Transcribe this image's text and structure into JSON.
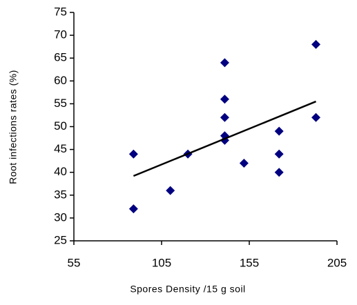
{
  "chart_data": {
    "type": "scatter",
    "x_label": "Spores Density /15 g soil",
    "y_label": "Root infections rates (%)",
    "x": [
      89,
      89,
      110,
      120,
      141,
      141,
      141,
      141,
      141,
      152,
      172,
      172,
      172,
      193,
      193
    ],
    "series": [
      {
        "color": "#000080",
        "values": [
          44,
          32,
          36,
          44,
          64,
          56,
          52,
          48,
          47,
          42,
          49,
          44,
          40,
          68,
          52
        ]
      }
    ],
    "trendline": {
      "x": [
        89,
        193
      ],
      "y": [
        39.2,
        55.5
      ],
      "color": "#000000"
    },
    "xlim": [
      55,
      205
    ],
    "xticks": [
      55,
      105,
      155,
      205
    ],
    "ylim": [
      25,
      75
    ],
    "yticks": [
      25,
      30,
      35,
      40,
      45,
      50,
      55,
      60,
      65,
      70,
      75
    ],
    "grid": false
  }
}
